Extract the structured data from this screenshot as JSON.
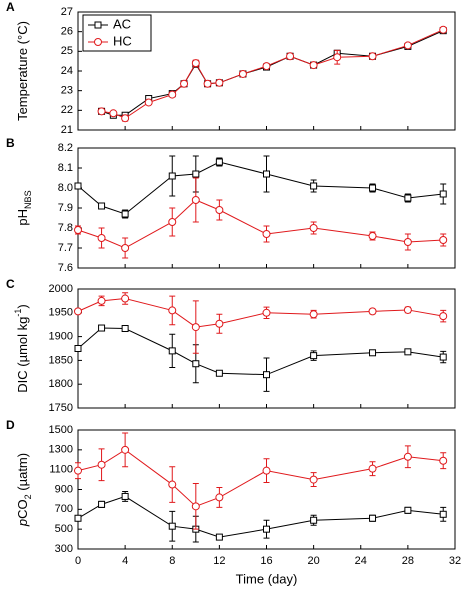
{
  "chart_data": [
    {
      "type": "line",
      "label": "A",
      "ylabel": [
        {
          "text": "Temperature (°C)"
        }
      ],
      "x": [
        2,
        3,
        4,
        6,
        8,
        9,
        10,
        11,
        12,
        14,
        16,
        18,
        20,
        22,
        25,
        28,
        31
      ],
      "series": [
        {
          "name": "AC",
          "color": "#000000",
          "marker": "square",
          "values": [
            21.95,
            21.75,
            21.75,
            22.6,
            22.85,
            23.35,
            24.35,
            23.35,
            23.4,
            23.85,
            24.2,
            24.75,
            24.3,
            24.9,
            24.75,
            25.25,
            26.05
          ],
          "errors": [
            0.1,
            0.1,
            0.1,
            0.1,
            0.1,
            0.05,
            0.15,
            0.05,
            0.05,
            0.05,
            0.05,
            0.05,
            0.05,
            0.15,
            0.05,
            0.05,
            0.05
          ]
        },
        {
          "name": "HC",
          "color": "#e0191c",
          "marker": "circle",
          "values": [
            21.95,
            21.85,
            21.6,
            22.4,
            22.8,
            23.35,
            24.4,
            23.35,
            23.4,
            23.85,
            24.25,
            24.75,
            24.3,
            24.7,
            24.75,
            25.3,
            26.1
          ],
          "errors": [
            0.1,
            0.1,
            0.15,
            0.1,
            0.1,
            0.05,
            0.15,
            0.05,
            0.05,
            0.05,
            0.05,
            0.05,
            0.05,
            0.35,
            0.05,
            0.05,
            0.05
          ]
        }
      ],
      "xlim": [
        0,
        32
      ],
      "xticks": [
        0,
        4,
        8,
        12,
        16,
        20,
        24,
        28,
        32
      ],
      "ylim": [
        21,
        27
      ],
      "yticks": [
        21,
        22,
        23,
        24,
        25,
        26,
        27
      ],
      "legend": "upper left"
    },
    {
      "type": "line",
      "label": "B",
      "ylabel": [
        {
          "text": "pH"
        },
        {
          "text": "NBS",
          "shift": "sub"
        }
      ],
      "x": [
        0,
        2,
        4,
        8,
        10,
        12,
        16,
        20,
        25,
        28,
        31
      ],
      "series": [
        {
          "color": "#000000",
          "marker": "square",
          "values": [
            8.01,
            7.91,
            7.87,
            8.06,
            8.07,
            8.13,
            8.07,
            8.01,
            8.0,
            7.95,
            7.97
          ],
          "errors": [
            0.005,
            0.015,
            0.02,
            0.1,
            0.09,
            0.02,
            0.09,
            0.03,
            0.02,
            0.02,
            0.05
          ]
        },
        {
          "color": "#e0191c",
          "marker": "circle",
          "values": [
            7.79,
            7.75,
            7.7,
            7.83,
            7.94,
            7.89,
            7.77,
            7.8,
            7.76,
            7.73,
            7.74
          ],
          "errors": [
            0.02,
            0.05,
            0.05,
            0.07,
            0.11,
            0.05,
            0.04,
            0.03,
            0.02,
            0.04,
            0.03
          ]
        }
      ],
      "xlim": [
        0,
        32
      ],
      "xticks": [
        0,
        4,
        8,
        12,
        16,
        20,
        24,
        28,
        32
      ],
      "ylim": [
        7.6,
        8.2
      ],
      "yticks": [
        7.6,
        7.7,
        7.8,
        7.9,
        {
          "value": 8.0,
          "label": "8.0"
        },
        8.1,
        8.2
      ]
    },
    {
      "type": "line",
      "label": "C",
      "ylabel": [
        {
          "text": "DIC (µmol kg"
        },
        {
          "text": "-1",
          "shift": "super"
        },
        {
          "text": ")"
        }
      ],
      "x": [
        0,
        2,
        4,
        8,
        10,
        12,
        16,
        20,
        25,
        28,
        31
      ],
      "series": [
        {
          "color": "#000000",
          "marker": "square",
          "values": [
            1875,
            1918,
            1917,
            1870,
            1843,
            1823,
            1820,
            1860,
            1866,
            1868,
            1857
          ],
          "errors": [
            3,
            4,
            3,
            35,
            40,
            3,
            35,
            10,
            3,
            5,
            12
          ]
        },
        {
          "color": "#e0191c",
          "marker": "circle",
          "values": [
            1953,
            1975,
            1980,
            1955,
            1920,
            1927,
            1950,
            1947,
            1953,
            1956,
            1943
          ],
          "errors": [
            3,
            10,
            12,
            30,
            55,
            20,
            12,
            8,
            5,
            6,
            12
          ]
        }
      ],
      "xlim": [
        0,
        32
      ],
      "xticks": [
        0,
        4,
        8,
        12,
        16,
        20,
        24,
        28,
        32
      ],
      "ylim": [
        1750,
        2000
      ],
      "yticks": [
        1750,
        1800,
        1850,
        1900,
        1950,
        2000
      ]
    },
    {
      "type": "line",
      "label": "D",
      "ylabel": [
        {
          "text": "p",
          "style": "italic"
        },
        {
          "text": "CO"
        },
        {
          "text": "2",
          "shift": "sub"
        },
        {
          "text": " (µatm)"
        }
      ],
      "x": [
        0,
        2,
        4,
        8,
        10,
        12,
        16,
        20,
        25,
        28,
        31
      ],
      "series": [
        {
          "color": "#000000",
          "marker": "square",
          "values": [
            610,
            750,
            830,
            530,
            500,
            420,
            500,
            590,
            610,
            690,
            650
          ],
          "errors": [
            20,
            30,
            50,
            150,
            130,
            20,
            90,
            50,
            30,
            30,
            70
          ]
        },
        {
          "color": "#e0191c",
          "marker": "circle",
          "values": [
            1090,
            1150,
            1300,
            950,
            730,
            820,
            1090,
            1000,
            1110,
            1230,
            1190
          ],
          "errors": [
            80,
            160,
            170,
            180,
            230,
            100,
            120,
            70,
            70,
            110,
            80
          ]
        }
      ],
      "xlim": [
        0,
        32
      ],
      "xticks": [
        0,
        4,
        8,
        12,
        16,
        20,
        24,
        28,
        32
      ],
      "show_xtick_labels": true,
      "xlabel": "Time (day)",
      "ylim": [
        300,
        1500
      ],
      "yticks": [
        300,
        500,
        700,
        900,
        1100,
        1300,
        1500
      ]
    }
  ]
}
